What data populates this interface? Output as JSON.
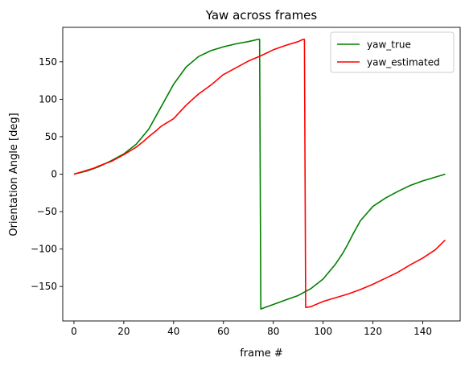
{
  "chart_data": {
    "type": "line",
    "title": "Yaw across frames",
    "xlabel": "frame #",
    "ylabel": "Orientation Angle [deg]",
    "xlim": [
      -4.5,
      155
    ],
    "ylim": [
      -196,
      196
    ],
    "xticks": [
      0,
      20,
      40,
      60,
      80,
      100,
      120,
      140
    ],
    "yticks": [
      -150,
      -100,
      -50,
      0,
      50,
      100,
      150
    ],
    "grid": false,
    "legend": {
      "position": "top-right"
    },
    "series": [
      {
        "name": "yaw_true",
        "color": "#008000",
        "points": [
          [
            0,
            0
          ],
          [
            5,
            4
          ],
          [
            10,
            10
          ],
          [
            15,
            18
          ],
          [
            20,
            27
          ],
          [
            25,
            40
          ],
          [
            30,
            60
          ],
          [
            35,
            90
          ],
          [
            38,
            108
          ],
          [
            40,
            120
          ],
          [
            45,
            143
          ],
          [
            50,
            157
          ],
          [
            55,
            165
          ],
          [
            60,
            170
          ],
          [
            65,
            174
          ],
          [
            70,
            177
          ],
          [
            74,
            180
          ],
          [
            74.5,
            180
          ],
          [
            75,
            -180
          ],
          [
            80,
            -174
          ],
          [
            85,
            -168
          ],
          [
            90,
            -162
          ],
          [
            95,
            -153
          ],
          [
            100,
            -140
          ],
          [
            105,
            -120
          ],
          [
            108,
            -105
          ],
          [
            110,
            -93
          ],
          [
            112,
            -80
          ],
          [
            115,
            -62
          ],
          [
            120,
            -43
          ],
          [
            125,
            -32
          ],
          [
            130,
            -23
          ],
          [
            135,
            -15
          ],
          [
            140,
            -9
          ],
          [
            145,
            -4
          ],
          [
            149,
            0
          ]
        ]
      },
      {
        "name": "yaw_estimated",
        "color": "#ff0000",
        "points": [
          [
            0,
            0
          ],
          [
            3,
            3
          ],
          [
            5,
            5
          ],
          [
            8,
            8
          ],
          [
            10,
            11
          ],
          [
            15,
            17
          ],
          [
            20,
            26
          ],
          [
            25,
            36
          ],
          [
            28,
            44
          ],
          [
            30,
            50
          ],
          [
            33,
            58
          ],
          [
            35,
            64
          ],
          [
            38,
            70
          ],
          [
            40,
            74
          ],
          [
            45,
            92
          ],
          [
            50,
            107
          ],
          [
            55,
            119
          ],
          [
            60,
            133
          ],
          [
            65,
            142
          ],
          [
            70,
            151
          ],
          [
            75,
            158
          ],
          [
            80,
            166
          ],
          [
            85,
            172
          ],
          [
            90,
            177
          ],
          [
            92,
            180
          ],
          [
            92.5,
            180
          ],
          [
            93,
            -178
          ],
          [
            95,
            -177
          ],
          [
            100,
            -170
          ],
          [
            105,
            -165
          ],
          [
            110,
            -160
          ],
          [
            115,
            -154
          ],
          [
            120,
            -147
          ],
          [
            125,
            -139
          ],
          [
            130,
            -131
          ],
          [
            135,
            -121
          ],
          [
            140,
            -112
          ],
          [
            145,
            -101
          ],
          [
            149,
            -88
          ]
        ]
      }
    ]
  }
}
